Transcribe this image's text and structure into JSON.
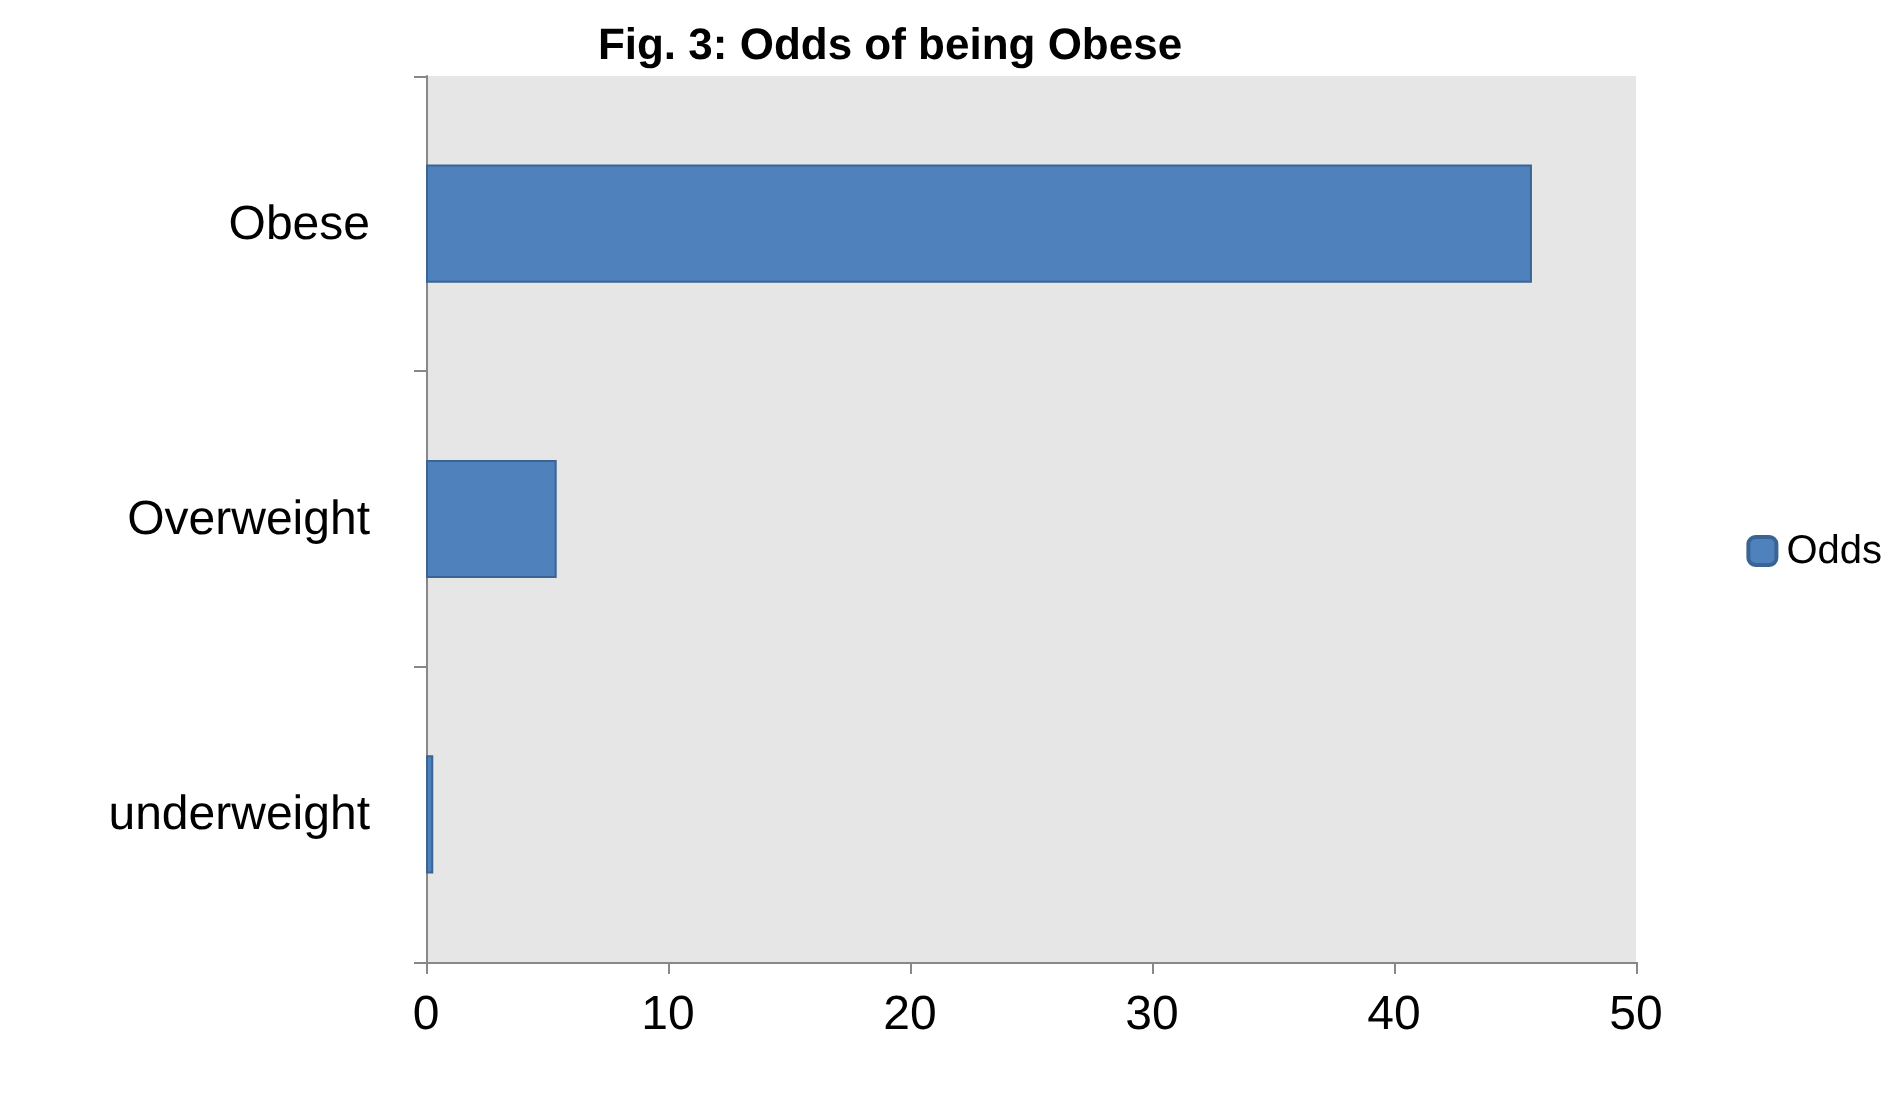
{
  "chart_data": {
    "type": "bar",
    "orientation": "horizontal",
    "title": "Fig. 3: Odds of being Obese",
    "categories": [
      "Obese",
      "Overweight",
      "underweight"
    ],
    "series": [
      {
        "name": "Odds",
        "color": "#4f81bd",
        "values": [
          45.7,
          5.4,
          0.3
        ]
      }
    ],
    "xlim": [
      0,
      50
    ],
    "xticks": [
      0,
      10,
      20,
      30,
      40,
      50
    ],
    "grid": false,
    "legend": "right"
  }
}
